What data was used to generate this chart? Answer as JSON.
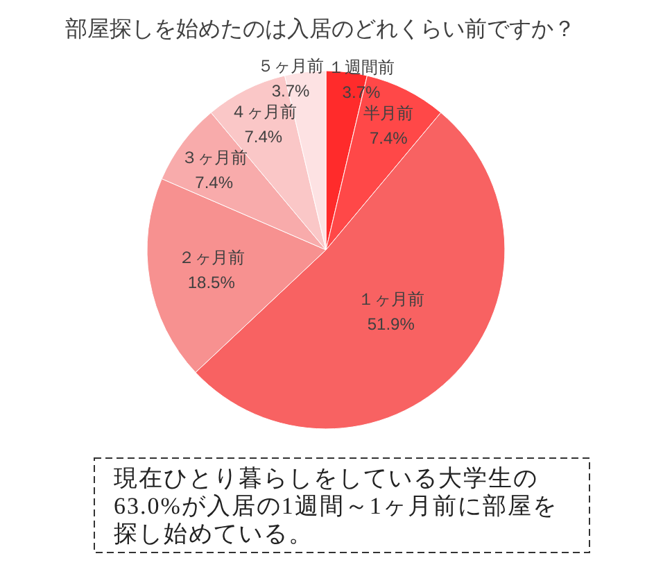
{
  "chart_data": {
    "type": "pie",
    "title": "部屋探しを始めたのは入居のどれくらい前ですか？",
    "categories": [
      "１週間前",
      "半月前",
      "１ヶ月前",
      "２ヶ月前",
      "３ヶ月前",
      "４ヶ月前",
      "５ヶ月前"
    ],
    "values": [
      3.7,
      7.4,
      51.9,
      18.5,
      7.4,
      7.4,
      3.7
    ],
    "colors": [
      "#ff2b2b",
      "#ff4848",
      "#f86262",
      "#f79190",
      "#f8abab",
      "#fac7c7",
      "#fde2e3"
    ],
    "value_labels": [
      "3.7%",
      "7.4%",
      "51.9%",
      "18.5%",
      "7.4%",
      "7.4%",
      "3.7%"
    ],
    "annotations": [
      "現在ひとり暮らしをしている大学生の63.0%が入居の1週間～1ヶ月前に部屋を探し始めている。"
    ]
  }
}
